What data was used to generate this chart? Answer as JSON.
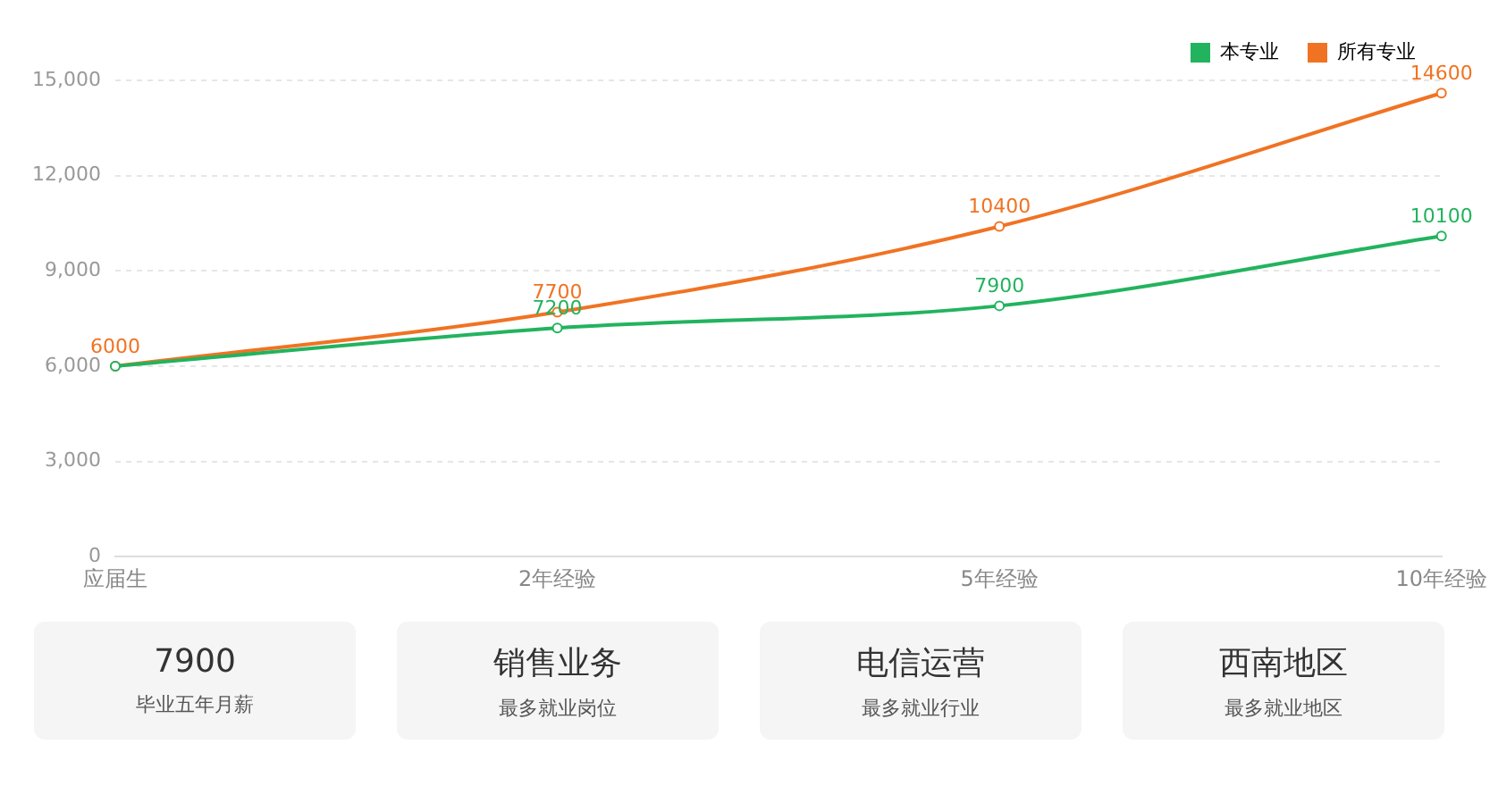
{
  "chart_data": [
    {
      "type": "line",
      "categories": [
        "应届生",
        "2年经验",
        "5年经验",
        "10年经验"
      ],
      "series": [
        {
          "name": "本专业",
          "color": "#22b35e",
          "values": [
            6000,
            7200,
            7900,
            10100
          ],
          "value_labels": [
            null,
            "7200",
            "7900",
            "10100"
          ]
        },
        {
          "name": "所有专业",
          "color": "#f07323",
          "values": [
            6000,
            7700,
            10400,
            14600
          ],
          "value_labels": [
            "6000",
            "7700",
            "10400",
            "14600"
          ]
        }
      ],
      "ylim": [
        0,
        15000
      ],
      "yticks": [
        {
          "value": 0,
          "label": "0"
        },
        {
          "value": 3000,
          "label": "3,000"
        },
        {
          "value": 6000,
          "label": "6,000"
        },
        {
          "value": 9000,
          "label": "9,000"
        },
        {
          "value": 12000,
          "label": "12,000"
        },
        {
          "value": 15000,
          "label": "15,000"
        }
      ],
      "grid": "y",
      "legend": "top right",
      "marker": "circle",
      "line_style": "solid"
    },
    {
      "type": "other",
      "title": "7900",
      "subtitle": "毕业五年月薪"
    },
    {
      "type": "other",
      "title": "销售业务",
      "subtitle": "最多就业岗位"
    },
    {
      "type": "other",
      "title": "电信运营",
      "subtitle": "最多就业行业"
    },
    {
      "type": "other",
      "title": "西南地区",
      "subtitle": "最多就业地区"
    }
  ]
}
